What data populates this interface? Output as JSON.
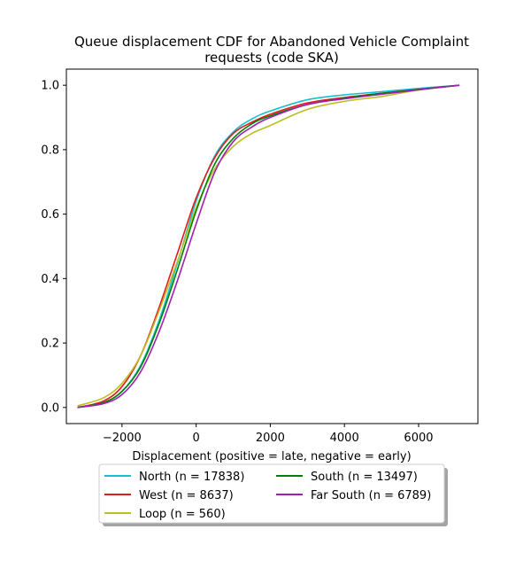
{
  "chart_data": {
    "type": "line",
    "title": "Queue displacement CDF for Abandoned Vehicle Complaint requests (code SKA)",
    "title_lines": [
      "Queue displacement CDF for Abandoned Vehicle Complaint",
      "requests (code SKA)"
    ],
    "xlabel": "Displacement (positive = late, negative = early)",
    "ylabel": "",
    "xlim": [
      -3500,
      7600
    ],
    "ylim": [
      -0.05,
      1.05
    ],
    "xticks": [
      -2000,
      0,
      2000,
      4000,
      6000
    ],
    "xtick_labels": [
      "−2000",
      "0",
      "2000",
      "4000",
      "6000"
    ],
    "yticks": [
      0.0,
      0.2,
      0.4,
      0.6,
      0.8,
      1.0
    ],
    "ytick_labels": [
      "0.0",
      "0.2",
      "0.4",
      "0.6",
      "0.8",
      "1.0"
    ],
    "grid": false,
    "legend_position": "below-center",
    "series": [
      {
        "name": "North (n = 17838)",
        "color": "#17becf",
        "x": [
          -3200,
          -2500,
          -2000,
          -1500,
          -1000,
          -500,
          0,
          500,
          1000,
          1500,
          2000,
          3000,
          4000,
          5000,
          6000,
          7100
        ],
        "y": [
          0.0,
          0.015,
          0.05,
          0.13,
          0.27,
          0.45,
          0.64,
          0.78,
          0.855,
          0.895,
          0.92,
          0.955,
          0.97,
          0.98,
          0.99,
          1.0
        ]
      },
      {
        "name": "West (n = 8637)",
        "color": "#e31a1c",
        "x": [
          -3200,
          -2500,
          -2000,
          -1500,
          -1000,
          -500,
          0,
          500,
          1000,
          1500,
          2000,
          3000,
          4000,
          5000,
          6000,
          7100
        ],
        "y": [
          0.0,
          0.02,
          0.065,
          0.16,
          0.31,
          0.48,
          0.65,
          0.775,
          0.85,
          0.885,
          0.91,
          0.945,
          0.962,
          0.975,
          0.987,
          1.0
        ]
      },
      {
        "name": "Loop (n = 560)",
        "color": "#bcbd22",
        "x": [
          -3200,
          -2500,
          -2000,
          -1500,
          -1000,
          -500,
          0,
          500,
          1000,
          1500,
          2000,
          3000,
          4000,
          5000,
          6000,
          7100
        ],
        "y": [
          0.005,
          0.03,
          0.075,
          0.16,
          0.3,
          0.455,
          0.62,
          0.74,
          0.81,
          0.85,
          0.875,
          0.925,
          0.95,
          0.965,
          0.985,
          1.0
        ]
      },
      {
        "name": "South (n = 13497)",
        "color": "#008000",
        "x": [
          -3200,
          -2500,
          -2000,
          -1500,
          -1000,
          -500,
          0,
          500,
          1000,
          1500,
          2000,
          3000,
          4000,
          5000,
          6000,
          7100
        ],
        "y": [
          0.0,
          0.015,
          0.05,
          0.125,
          0.26,
          0.43,
          0.61,
          0.755,
          0.835,
          0.88,
          0.905,
          0.94,
          0.96,
          0.975,
          0.987,
          1.0
        ]
      },
      {
        "name": "Far South (n = 6789)",
        "color": "#a020b0",
        "x": [
          -3200,
          -2500,
          -2000,
          -1500,
          -1000,
          -500,
          0,
          500,
          1000,
          1500,
          2000,
          3000,
          4000,
          5000,
          6000,
          7100
        ],
        "y": [
          0.0,
          0.012,
          0.04,
          0.11,
          0.235,
          0.395,
          0.57,
          0.73,
          0.825,
          0.87,
          0.9,
          0.94,
          0.958,
          0.972,
          0.986,
          1.0
        ]
      }
    ]
  }
}
